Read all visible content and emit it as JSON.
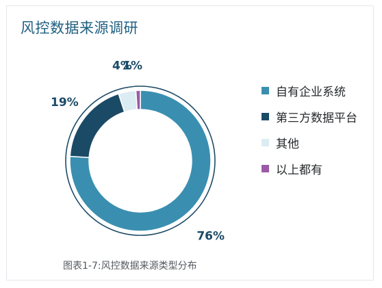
{
  "title": "风控数据来源调研",
  "caption": "图表1-7:风控数据来源类型分布",
  "chart_data": {
    "type": "pie",
    "variant": "donut",
    "title": "风控数据来源调研",
    "legend_position": "right",
    "categories": [
      "自有企业系统",
      "第三方数据平台",
      "其他",
      "以上都有"
    ],
    "values": [
      76,
      19,
      4,
      1
    ],
    "labels": [
      "76%",
      "19%",
      "4%",
      "1%"
    ],
    "colors": [
      "#3a8fb0",
      "#1b4a66",
      "#dbecf2",
      "#9b5aa6"
    ]
  }
}
